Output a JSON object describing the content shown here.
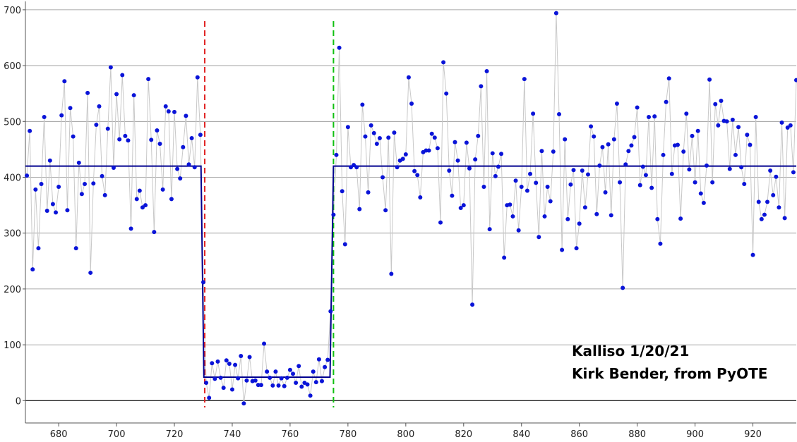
{
  "chart_data": {
    "type": "scatter",
    "title": "",
    "xlabel": "",
    "ylabel": "",
    "xlim": [
      668.5,
      935
    ],
    "ylim": [
      -40,
      715
    ],
    "x_ticks": [
      680,
      700,
      720,
      740,
      760,
      780,
      800,
      820,
      840,
      860,
      880,
      900,
      920
    ],
    "y_ticks": [
      0,
      100,
      200,
      300,
      400,
      500,
      600,
      700
    ],
    "grid": "horizontal",
    "colors": {
      "points": "#0a14d8",
      "connecting_line": "#c8c8c8",
      "model_line": "#00008f",
      "d_edge": "#e02020",
      "r_edge": "#10c010",
      "grid": "#909090"
    },
    "series": [
      {
        "x_start": 669,
        "y": [
          403,
          483,
          235,
          378,
          273,
          388,
          508,
          340,
          430,
          352,
          337,
          383,
          511,
          572,
          341,
          524,
          473,
          273,
          426,
          370,
          388,
          551,
          229,
          389,
          494,
          527,
          402,
          368,
          487,
          597,
          417,
          549,
          468,
          583,
          474,
          466,
          308,
          547,
          361,
          376,
          346,
          350,
          576,
          467,
          302,
          484,
          460,
          378,
          527,
          518,
          361,
          517,
          415,
          398,
          454,
          510,
          423,
          470,
          418,
          579,
          476,
          212,
          32,
          5,
          67,
          39,
          70,
          41,
          23,
          72,
          66,
          20,
          64,
          40,
          80,
          -5,
          36,
          78,
          35,
          36,
          28,
          28,
          102,
          52,
          41,
          27,
          52,
          27,
          40,
          26,
          41,
          55,
          48,
          32,
          62,
          25,
          32,
          29,
          9,
          52,
          33,
          74,
          35,
          60,
          73,
          160,
          333,
          440,
          632,
          375,
          280,
          490,
          418,
          422,
          418,
          343,
          530,
          473,
          373,
          493,
          479,
          460,
          470,
          400,
          341,
          471,
          227,
          480,
          418,
          430,
          433,
          441,
          579,
          532,
          411,
          404,
          364,
          445,
          448,
          448,
          478,
          471,
          452,
          319,
          606,
          550,
          412,
          367,
          463,
          430,
          345,
          350,
          462,
          416,
          172,
          432,
          474,
          563,
          383,
          590,
          307,
          443,
          402,
          419,
          442,
          256,
          350,
          351,
          330,
          394,
          305,
          383,
          576,
          376,
          406,
          514,
          390,
          293,
          447,
          330,
          383,
          357,
          446,
          694,
          513,
          270,
          468,
          325,
          387,
          413,
          273,
          317,
          412,
          346,
          405,
          491,
          473,
          334,
          421,
          454,
          373,
          459,
          332,
          468,
          532,
          391,
          202,
          423,
          447,
          457,
          472,
          525,
          386,
          419,
          404,
          508,
          381,
          509,
          325,
          281,
          440,
          535,
          577,
          406,
          457,
          458,
          326,
          446,
          514,
          414,
          474,
          391,
          483,
          371,
          354,
          421,
          575,
          391,
          531,
          493,
          537,
          501,
          500,
          415,
          503,
          440,
          490,
          418,
          388,
          476,
          458,
          261,
          508,
          356,
          325,
          333,
          356,
          412,
          368,
          401,
          346,
          498,
          327,
          489,
          493,
          409,
          574
        ]
      }
    ],
    "model_fit": {
      "baseline": 420,
      "event_bottom": 42,
      "d_time": 730.2,
      "r_time": 774.3,
      "transition_start": 729.2,
      "transition_end": 775.0
    },
    "d_edge_x": 730.5,
    "r_edge_x": 775.0,
    "annotations": [
      "Kalliso 1/20/21",
      "Kirk Bender, from PyOTE"
    ]
  }
}
